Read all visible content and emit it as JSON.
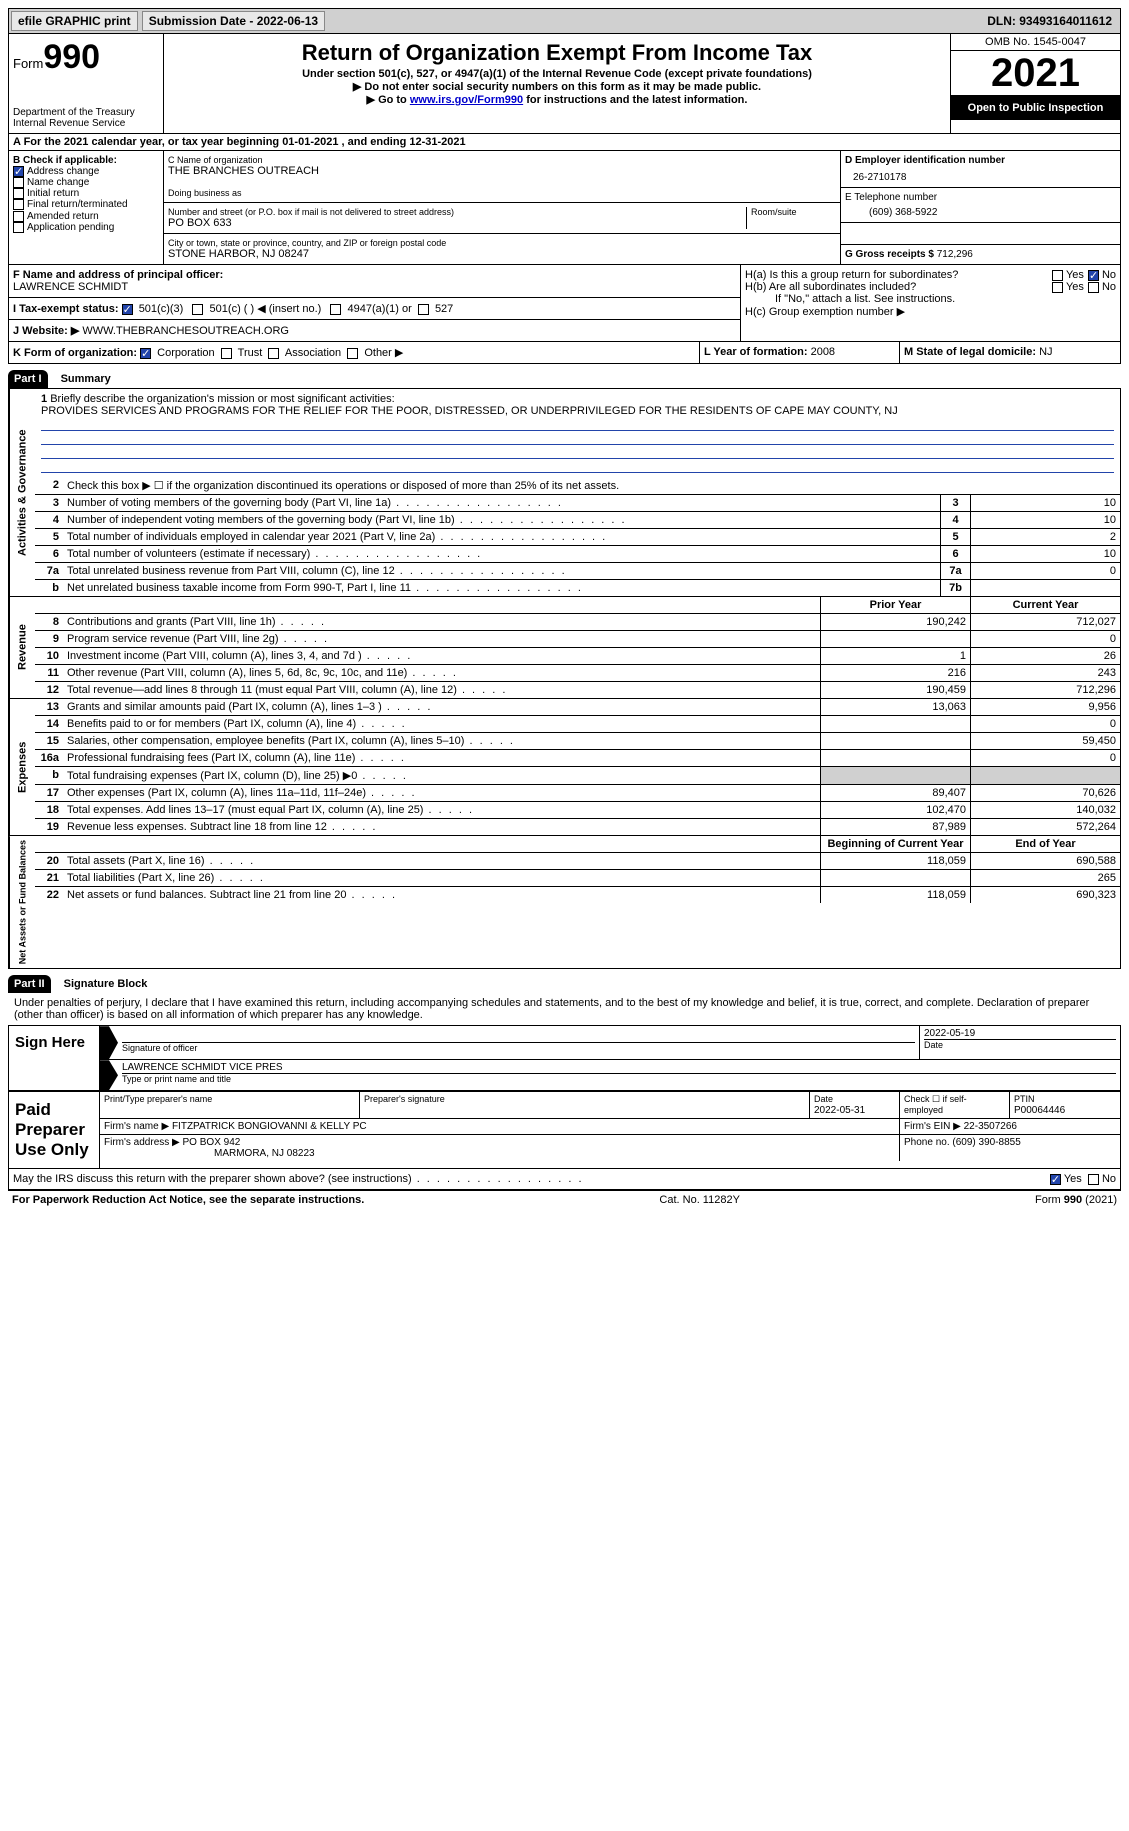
{
  "topbar": {
    "efile_label": "efile GRAPHIC print",
    "submission_label": "Submission Date - 2022-06-13",
    "dln_label": "DLN: 93493164011612"
  },
  "header": {
    "form_prefix": "Form",
    "form_number": "990",
    "dept": "Department of the Treasury\nInternal Revenue Service",
    "title": "Return of Organization Exempt From Income Tax",
    "subtitle": "Under section 501(c), 527, or 4947(a)(1) of the Internal Revenue Code (except private foundations)",
    "note1": "Do not enter social security numbers on this form as it may be made public.",
    "note2_pre": "Go to ",
    "note2_link": "www.irs.gov/Form990",
    "note2_post": " for instructions and the latest information.",
    "omb": "OMB No. 1545-0047",
    "year": "2021",
    "pub": "Open to Public Inspection"
  },
  "sectionA": {
    "text": "A For the 2021 calendar year, or tax year beginning 01-01-2021    , and ending 12-31-2021"
  },
  "sectionB": {
    "label": "B Check if applicable:",
    "items": [
      {
        "label": "Address change",
        "checked": true
      },
      {
        "label": "Name change",
        "checked": false
      },
      {
        "label": "Initial return",
        "checked": false
      },
      {
        "label": "Final return/terminated",
        "checked": false
      },
      {
        "label": "Amended return",
        "checked": false
      },
      {
        "label": "Application pending",
        "checked": false
      }
    ]
  },
  "sectionC": {
    "name_label": "C Name of organization",
    "name": "THE BRANCHES OUTREACH",
    "dba_label": "Doing business as",
    "addr_label": "Number and street (or P.O. box if mail is not delivered to street address)",
    "room_label": "Room/suite",
    "addr": "PO BOX 633",
    "city_label": "City or town, state or province, country, and ZIP or foreign postal code",
    "city": "STONE HARBOR, NJ  08247"
  },
  "sectionD": {
    "ein_label": "D Employer identification number",
    "ein": "26-2710178",
    "phone_label": "E Telephone number",
    "phone": "(609) 368-5922",
    "receipts_label": "G Gross receipts $",
    "receipts": "712,296"
  },
  "sectionF": {
    "label": "F Name and address of principal officer:",
    "value": "LAWRENCE SCHMIDT"
  },
  "sectionH": {
    "ha_label": "H(a)  Is this a group return for subordinates?",
    "hb_label": "H(b)  Are all subordinates included?",
    "hb_note": "If \"No,\" attach a list. See instructions.",
    "hc_label": "H(c)  Group exemption number ▶",
    "yes": "Yes",
    "no": "No"
  },
  "sectionI": {
    "label": "I   Tax-exempt status:",
    "opts": [
      "501(c)(3)",
      "501(c) (  ) ◀ (insert no.)",
      "4947(a)(1) or",
      "527"
    ]
  },
  "sectionJ": {
    "label": "J   Website: ▶",
    "value": "WWW.THEBRANCHESOUTREACH.ORG"
  },
  "sectionK": {
    "label": "K Form of organization:",
    "opts": [
      "Corporation",
      "Trust",
      "Association",
      "Other ▶"
    ]
  },
  "sectionL": {
    "label": "L Year of formation:",
    "value": "2008"
  },
  "sectionM": {
    "label": "M State of legal domicile:",
    "value": "NJ"
  },
  "part1": {
    "hdr": "Part I",
    "title": "Summary",
    "line1_label": "Briefly describe the organization's mission or most significant activities:",
    "line1_text": "PROVIDES SERVICES AND PROGRAMS FOR THE RELIEF FOR THE POOR, DISTRESSED, OR UNDERPRIVILEGED FOR THE RESIDENTS OF CAPE MAY COUNTY, NJ",
    "line2_label": "Check this box ▶ ☐ if the organization discontinued its operations or disposed of more than 25% of its net assets.",
    "tabs": {
      "a": "Activities & Governance",
      "b": "Revenue",
      "c": "Expenses",
      "d": "Net Assets or Fund Balances"
    },
    "rows_small": [
      {
        "n": "3",
        "label": "Number of voting members of the governing body (Part VI, line 1a)",
        "box": "3",
        "val": "10"
      },
      {
        "n": "4",
        "label": "Number of independent voting members of the governing body (Part VI, line 1b)",
        "box": "4",
        "val": "10"
      },
      {
        "n": "5",
        "label": "Total number of individuals employed in calendar year 2021 (Part V, line 2a)",
        "box": "5",
        "val": "2"
      },
      {
        "n": "6",
        "label": "Total number of volunteers (estimate if necessary)",
        "box": "6",
        "val": "10"
      },
      {
        "n": "7a",
        "label": "Total unrelated business revenue from Part VIII, column (C), line 12",
        "box": "7a",
        "val": "0"
      },
      {
        "n": "b",
        "label": "Net unrelated business taxable income from Form 990-T, Part I, line 11",
        "box": "7b",
        "val": ""
      }
    ],
    "twocol_hdr": {
      "prior": "Prior Year",
      "current": "Current Year"
    },
    "revenue_rows": [
      {
        "n": "8",
        "label": "Contributions and grants (Part VIII, line 1h)",
        "p": "190,242",
        "c": "712,027"
      },
      {
        "n": "9",
        "label": "Program service revenue (Part VIII, line 2g)",
        "p": "",
        "c": "0"
      },
      {
        "n": "10",
        "label": "Investment income (Part VIII, column (A), lines 3, 4, and 7d )",
        "p": "1",
        "c": "26"
      },
      {
        "n": "11",
        "label": "Other revenue (Part VIII, column (A), lines 5, 6d, 8c, 9c, 10c, and 11e)",
        "p": "216",
        "c": "243"
      },
      {
        "n": "12",
        "label": "Total revenue—add lines 8 through 11 (must equal Part VIII, column (A), line 12)",
        "p": "190,459",
        "c": "712,296"
      }
    ],
    "expense_rows": [
      {
        "n": "13",
        "label": "Grants and similar amounts paid (Part IX, column (A), lines 1–3 )",
        "p": "13,063",
        "c": "9,956"
      },
      {
        "n": "14",
        "label": "Benefits paid to or for members (Part IX, column (A), line 4)",
        "p": "",
        "c": "0"
      },
      {
        "n": "15",
        "label": "Salaries, other compensation, employee benefits (Part IX, column (A), lines 5–10)",
        "p": "",
        "c": "59,450"
      },
      {
        "n": "16a",
        "label": "Professional fundraising fees (Part IX, column (A), line 11e)",
        "p": "",
        "c": "0"
      },
      {
        "n": "b",
        "label": "Total fundraising expenses (Part IX, column (D), line 25) ▶0",
        "p": "GRAY",
        "c": "GRAY"
      },
      {
        "n": "17",
        "label": "Other expenses (Part IX, column (A), lines 11a–11d, 11f–24e)",
        "p": "89,407",
        "c": "70,626"
      },
      {
        "n": "18",
        "label": "Total expenses. Add lines 13–17 (must equal Part IX, column (A), line 25)",
        "p": "102,470",
        "c": "140,032"
      },
      {
        "n": "19",
        "label": "Revenue less expenses. Subtract line 18 from line 12",
        "p": "87,989",
        "c": "572,264"
      }
    ],
    "netassets_hdr": {
      "beg": "Beginning of Current Year",
      "end": "End of Year"
    },
    "netassets_rows": [
      {
        "n": "20",
        "label": "Total assets (Part X, line 16)",
        "p": "118,059",
        "c": "690,588"
      },
      {
        "n": "21",
        "label": "Total liabilities (Part X, line 26)",
        "p": "",
        "c": "265"
      },
      {
        "n": "22",
        "label": "Net assets or fund balances. Subtract line 21 from line 20",
        "p": "118,059",
        "c": "690,323"
      }
    ]
  },
  "part2": {
    "hdr": "Part II",
    "title": "Signature Block",
    "decl": "Under penalties of perjury, I declare that I have examined this return, including accompanying schedules and statements, and to the best of my knowledge and belief, it is true, correct, and complete. Declaration of preparer (other than officer) is based on all information of which preparer has any knowledge.",
    "sign_here": "Sign Here",
    "sig_officer_label": "Signature of officer",
    "sig_date": "2022-05-19",
    "sig_date_label": "Date",
    "officer_name": "LAWRENCE SCHMIDT VICE PRES",
    "officer_name_label": "Type or print name and title",
    "paid_prep": "Paid Preparer Use Only",
    "prep_name_label": "Print/Type preparer's name",
    "prep_sig_label": "Preparer's signature",
    "prep_date_label": "Date",
    "prep_date": "2022-05-31",
    "prep_selfemp_label": "Check ☐ if self-employed",
    "ptin_label": "PTIN",
    "ptin": "P00064446",
    "firm_name_label": "Firm's name      ▶",
    "firm_name": "FITZPATRICK BONGIOVANNI & KELLY PC",
    "firm_ein_label": "Firm's EIN ▶",
    "firm_ein": "22-3507266",
    "firm_addr_label": "Firm's address ▶",
    "firm_addr1": "PO BOX 942",
    "firm_addr2": "MARMORA, NJ  08223",
    "firm_phone_label": "Phone no.",
    "firm_phone": "(609) 390-8855",
    "discuss": "May the IRS discuss this return with the preparer shown above? (see instructions)",
    "yes": "Yes",
    "no": "No"
  },
  "footer": {
    "pra": "For Paperwork Reduction Act Notice, see the separate instructions.",
    "cat": "Cat. No. 11282Y",
    "form": "Form 990 (2021)"
  }
}
